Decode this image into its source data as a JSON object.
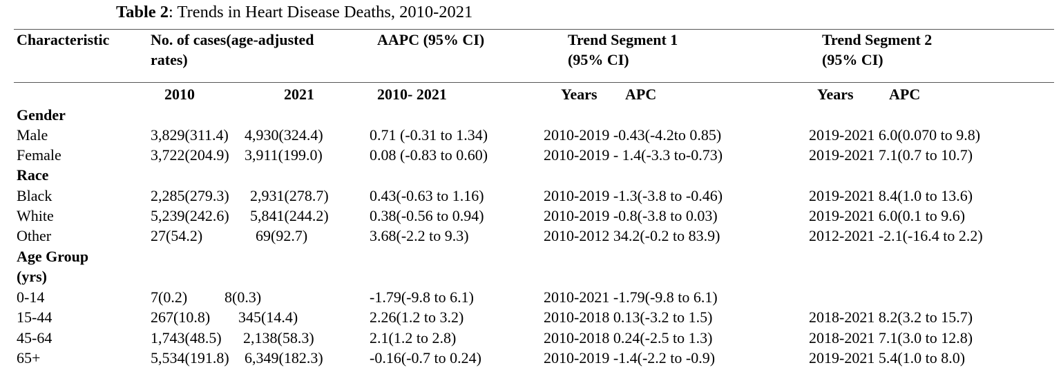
{
  "title": {
    "label": "Table 2",
    "text": ": Trends in Heart Disease Deaths, 2010-2021"
  },
  "headers": {
    "characteristic": "Characteristic",
    "cases_line1": "No. of cases(age-adjusted",
    "cases_line2": "rates)",
    "aapc": "AAPC (95% CI)",
    "seg1_line1": "Trend Segment 1",
    "seg1_line2": "(95% CI)",
    "seg2_line1": "Trend Segment 2",
    "seg2_line2": "(95% CI)"
  },
  "subheaders": {
    "y2010": "2010",
    "y2021": "2021",
    "aapc_range": "2010- 2021",
    "seg1_years": "Years",
    "seg1_apc": "APC",
    "seg2_years": "Years",
    "seg2_apc": "APC"
  },
  "sections": {
    "gender": "Gender",
    "race": "Race",
    "age_line1": "Age Group",
    "age_line2": "(yrs)"
  },
  "rows": {
    "male": {
      "label": "Male",
      "c2010": "3,829(311.4)",
      "c2021": "4,930(324.4)",
      "aapc": "0.71 (-0.31 to 1.34)",
      "seg1": "2010-2019 -0.43(-4.2to 0.85)",
      "seg2": "2019-2021 6.0(0.070 to 9.8)"
    },
    "female": {
      "label": "Female",
      "c2010": "3,722(204.9)",
      "c2021": "3,911(199.0)",
      "aapc": "0.08 (-0.83 to 0.60)",
      "seg1": "2010-2019 - 1.4(-3.3 to-0.73)",
      "seg2": "2019-2021 7.1(0.7 to 10.7)"
    },
    "black": {
      "label": "Black",
      "c2010": "2,285(279.3)",
      "c2021": "2,931(278.7)",
      "aapc": "0.43(-0.63 to 1.16)",
      "seg1": "2010-2019 -1.3(-3.8 to -0.46)",
      "seg2": "2019-2021 8.4(1.0 to 13.6)"
    },
    "white": {
      "label": "White",
      "c2010": "5,239(242.6)",
      "c2021": "5,841(244.2)",
      "aapc": "0.38(-0.56 to 0.94)",
      "seg1": "2010-2019 -0.8(-3.8 to 0.03)",
      "seg2": "2019-2021 6.0(0.1 to 9.6)"
    },
    "other": {
      "label": "Other",
      "c2010": "27(54.2)",
      "c2021": "69(92.7)",
      "aapc": "3.68(-2.2 to 9.3)",
      "seg1": "2010-2012 34.2(-0.2 to 83.9)",
      "seg2": "2012-2021 -2.1(-16.4 to 2.2)"
    },
    "a0_14": {
      "label": "0-14",
      "c2010": "7(0.2)",
      "c2021": "8(0.3)",
      "aapc": "-1.79(-9.8 to 6.1)",
      "seg1": "2010-2021 -1.79(-9.8 to 6.1)",
      "seg2": ""
    },
    "a15_44": {
      "label": "15-44",
      "c2010": "267(10.8)",
      "c2021": "345(14.4)",
      "aapc": "2.26(1.2 to 3.2)",
      "seg1": "2010-2018 0.13(-3.2 to 1.5)",
      "seg2": "2018-2021 8.2(3.2 to 15.7)"
    },
    "a45_64": {
      "label": "45-64",
      "c2010": "1,743(48.5)",
      "c2021": "2,138(58.3)",
      "aapc": "2.1(1.2 to 2.8)",
      "seg1": "2010-2018 0.24(-2.5 to 1.3)",
      "seg2": "2018-2021 7.1(3.0 to 12.8)"
    },
    "a65": {
      "label": "65+",
      "c2010": "5,534(191.8)",
      "c2021": "6,349(182.3)",
      "aapc": "-0.16(-0.7 to 0.24)",
      "seg1": "2010-2019 -1.4(-2.2 to -0.9)",
      "seg2": "2019-2021 5.4(1.0 to 8.0)"
    }
  }
}
